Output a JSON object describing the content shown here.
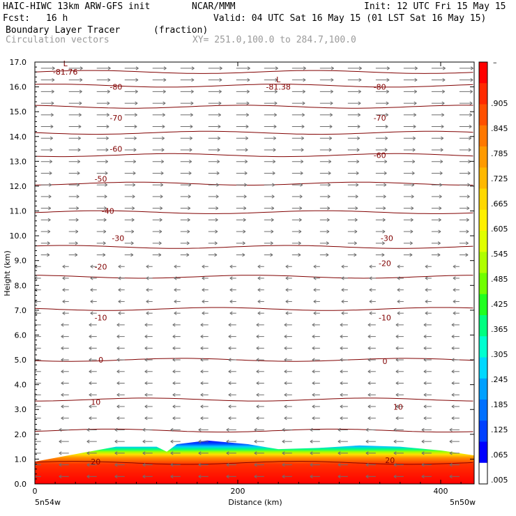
{
  "header": {
    "model": "HAIC-HIWC 13km ARW-GFS init",
    "org": "NCAR/MMM",
    "init": "Init: 12 UTC Fri 15 May 15",
    "fcst_label": "Fcst:",
    "fcst_value": "16 h",
    "valid": "Valid: 04 UTC Sat 16 May 15 (01 LST Sat 16 May 15)",
    "field_name": "Boundary Layer Tracer",
    "field_units": "(fraction)",
    "vector_name": "Circulation vectors",
    "xy_range": "XY= 251.0,100.0 to 284.7,100.0"
  },
  "axes": {
    "ylabel": "Height (km)",
    "xlabel": "Distance (km)",
    "left_end_label": "5n54w",
    "right_end_label": "5n50w"
  },
  "colorbar": {
    "labels": [
      ".905",
      ".845",
      ".785",
      ".725",
      ".665",
      ".605",
      ".545",
      ".485",
      ".425",
      ".365",
      ".305",
      ".245",
      ".185",
      ".125",
      ".065",
      ".005"
    ],
    "top_label": "–",
    "colors": [
      "#ff0000",
      "#ff2a00",
      "#ff5000",
      "#ff7800",
      "#ff9a00",
      "#ffb800",
      "#ffd800",
      "#fff000",
      "#e0ff00",
      "#b0ff00",
      "#70ff00",
      "#20ff20",
      "#00ff80",
      "#00ffd0",
      "#00d8ff",
      "#00a0ff",
      "#0070ff",
      "#0040ff",
      "#0000ff",
      "#ffffff"
    ]
  },
  "chart_data": {
    "type": "heatmap",
    "xlim": [
      0,
      433
    ],
    "ylim": [
      0,
      17
    ],
    "xticks": [
      0,
      200,
      400
    ],
    "yticks": [
      0.0,
      1.0,
      2.0,
      3.0,
      4.0,
      5.0,
      6.0,
      7.0,
      8.0,
      9.0,
      10.0,
      11.0,
      12.0,
      13.0,
      14.0,
      15.0,
      16.0,
      17.0
    ],
    "ytick_labels": [
      "0.0",
      "1.0",
      "2.0",
      "3.0",
      "4.0",
      "5.0",
      "6.0",
      "7.0",
      "8.0",
      "9.0",
      "10.0",
      "11.0",
      "12.0",
      "13.0",
      "14.0",
      "15.0",
      "16.0",
      "17.0"
    ],
    "boundary_layer_top_km": {
      "x": [
        0,
        40,
        80,
        120,
        130,
        140,
        170,
        210,
        240,
        280,
        320,
        360,
        400,
        433
      ],
      "y": [
        0.9,
        1.2,
        1.5,
        1.5,
        1.3,
        1.6,
        1.75,
        1.6,
        1.4,
        1.45,
        1.55,
        1.5,
        1.35,
        1.15
      ]
    },
    "contours_km": {
      "levels_km": [
        16.6,
        16.05,
        15.2,
        14.15,
        13.25,
        12.1,
        10.95,
        9.55,
        8.35,
        7.05,
        5.0,
        3.4,
        2.15,
        0.85
      ],
      "labels": [
        {
          "text": "-81.76",
          "x": 30,
          "y": 16.6
        },
        {
          "text": "-80",
          "x": 80,
          "y": 16.0
        },
        {
          "text": "-81.38",
          "x": 240,
          "y": 16.0
        },
        {
          "text": "-80",
          "x": 340,
          "y": 16.0
        },
        {
          "text": "-70",
          "x": 80,
          "y": 14.75
        },
        {
          "text": "-70",
          "x": 340,
          "y": 14.75
        },
        {
          "text": "-60",
          "x": 80,
          "y": 13.5
        },
        {
          "text": "-60",
          "x": 340,
          "y": 13.25
        },
        {
          "text": "-50",
          "x": 65,
          "y": 12.3
        },
        {
          "text": "-40",
          "x": 72,
          "y": 11.0
        },
        {
          "text": "-30",
          "x": 82,
          "y": 9.9
        },
        {
          "text": "-30",
          "x": 347,
          "y": 9.9
        },
        {
          "text": "-20",
          "x": 65,
          "y": 8.75
        },
        {
          "text": "-20",
          "x": 345,
          "y": 8.9
        },
        {
          "text": "-10",
          "x": 65,
          "y": 6.7
        },
        {
          "text": "-10",
          "x": 345,
          "y": 6.7
        },
        {
          "text": "0",
          "x": 65,
          "y": 5.0
        },
        {
          "text": "0",
          "x": 345,
          "y": 4.95
        },
        {
          "text": "10",
          "x": 60,
          "y": 3.3
        },
        {
          "text": "10",
          "x": 358,
          "y": 3.1
        },
        {
          "text": "20",
          "x": 60,
          "y": 0.9
        },
        {
          "text": "20",
          "x": 350,
          "y": 0.95
        }
      ],
      "low_markers": [
        {
          "text": "L",
          "x": 30,
          "y": 16.95
        },
        {
          "text": "L",
          "x": 240,
          "y": 16.3
        }
      ]
    },
    "vectors": {
      "upper_direction": "eastward (left to right) above ~9 km",
      "lower_direction": "westward (right to left) below ~9 km"
    }
  }
}
